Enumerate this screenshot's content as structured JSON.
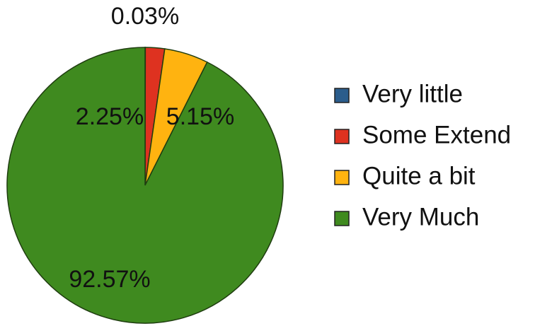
{
  "chart_data": {
    "type": "pie",
    "categories": [
      "Very little",
      "Some Extend",
      "Quite a bit",
      "Very Much"
    ],
    "values": [
      0.03,
      2.25,
      5.15,
      92.57
    ],
    "value_labels": [
      "0.03%",
      "2.25%",
      "5.15%",
      "92.57%"
    ],
    "colors": [
      "#2b5d8c",
      "#de3220",
      "#ffb310",
      "#3f8a1f"
    ],
    "legend": "right"
  }
}
